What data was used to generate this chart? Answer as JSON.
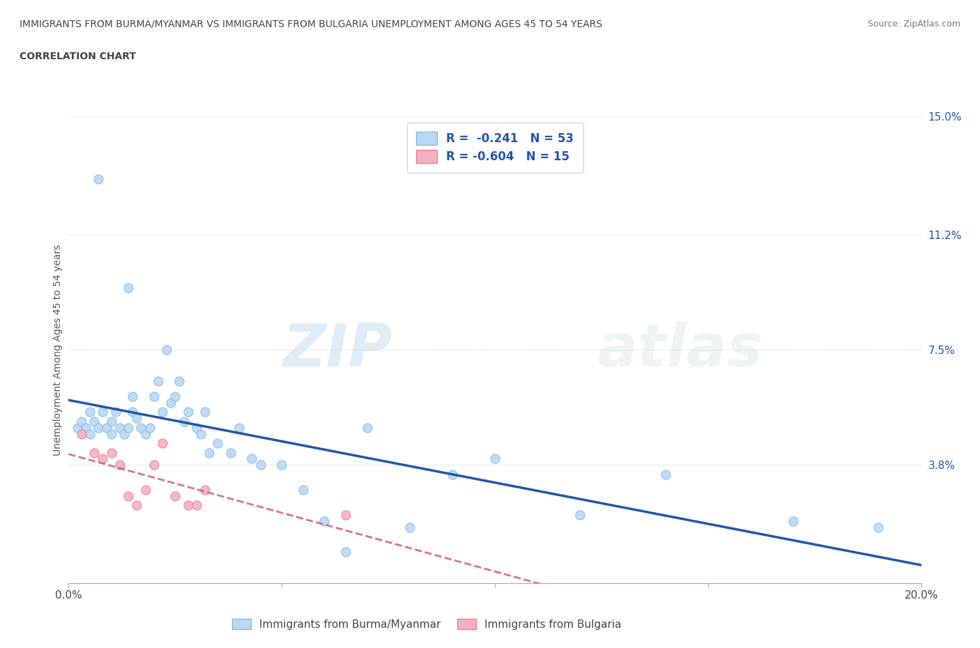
{
  "title_line1": "IMMIGRANTS FROM BURMA/MYANMAR VS IMMIGRANTS FROM BULGARIA UNEMPLOYMENT AMONG AGES 45 TO 54 YEARS",
  "title_line2": "CORRELATION CHART",
  "source": "Source: ZipAtlas.com",
  "ylabel": "Unemployment Among Ages 45 to 54 years",
  "xlim": [
    0.0,
    0.2
  ],
  "ylim": [
    0.0,
    0.15
  ],
  "xtick_vals": [
    0.0,
    0.05,
    0.1,
    0.15,
    0.2
  ],
  "xtick_labels": [
    "0.0%",
    "",
    "",
    "",
    "20.0%"
  ],
  "ytick_right_vals": [
    0.038,
    0.075,
    0.112,
    0.15
  ],
  "ytick_right_labels": [
    "3.8%",
    "7.5%",
    "11.2%",
    "15.0%"
  ],
  "grid_color": "#cccccc",
  "background_color": "#ffffff",
  "watermark_zip": "ZIP",
  "watermark_atlas": "atlas",
  "burma_scatter_face": "#b8d8f5",
  "burma_scatter_edge": "#88b8e8",
  "burma_line_color": "#2255aa",
  "bulgaria_scatter_face": "#f5b0c0",
  "bulgaria_scatter_edge": "#e88098",
  "bulgaria_line_color": "#d05878",
  "legend_text_color": "#2255aa",
  "title_color": "#444444",
  "right_axis_color": "#2255aa",
  "burma_x": [
    0.002,
    0.003,
    0.004,
    0.005,
    0.005,
    0.006,
    0.007,
    0.007,
    0.008,
    0.009,
    0.01,
    0.01,
    0.011,
    0.012,
    0.013,
    0.014,
    0.014,
    0.015,
    0.015,
    0.016,
    0.017,
    0.018,
    0.019,
    0.02,
    0.021,
    0.022,
    0.023,
    0.024,
    0.025,
    0.026,
    0.027,
    0.028,
    0.03,
    0.031,
    0.032,
    0.033,
    0.035,
    0.038,
    0.04,
    0.043,
    0.045,
    0.05,
    0.055,
    0.06,
    0.065,
    0.07,
    0.08,
    0.09,
    0.1,
    0.12,
    0.14,
    0.17,
    0.19
  ],
  "burma_y": [
    0.05,
    0.052,
    0.05,
    0.055,
    0.048,
    0.052,
    0.13,
    0.05,
    0.055,
    0.05,
    0.048,
    0.052,
    0.055,
    0.05,
    0.048,
    0.095,
    0.05,
    0.06,
    0.055,
    0.053,
    0.05,
    0.048,
    0.05,
    0.06,
    0.065,
    0.055,
    0.075,
    0.058,
    0.06,
    0.065,
    0.052,
    0.055,
    0.05,
    0.048,
    0.055,
    0.042,
    0.045,
    0.042,
    0.05,
    0.04,
    0.038,
    0.038,
    0.03,
    0.02,
    0.01,
    0.05,
    0.018,
    0.035,
    0.04,
    0.022,
    0.035,
    0.02,
    0.018
  ],
  "bulgaria_x": [
    0.003,
    0.006,
    0.008,
    0.01,
    0.012,
    0.014,
    0.016,
    0.018,
    0.02,
    0.022,
    0.025,
    0.028,
    0.03,
    0.032,
    0.065
  ],
  "bulgaria_y": [
    0.048,
    0.042,
    0.04,
    0.042,
    0.038,
    0.028,
    0.025,
    0.03,
    0.038,
    0.045,
    0.028,
    0.025,
    0.025,
    0.03,
    0.022
  ]
}
